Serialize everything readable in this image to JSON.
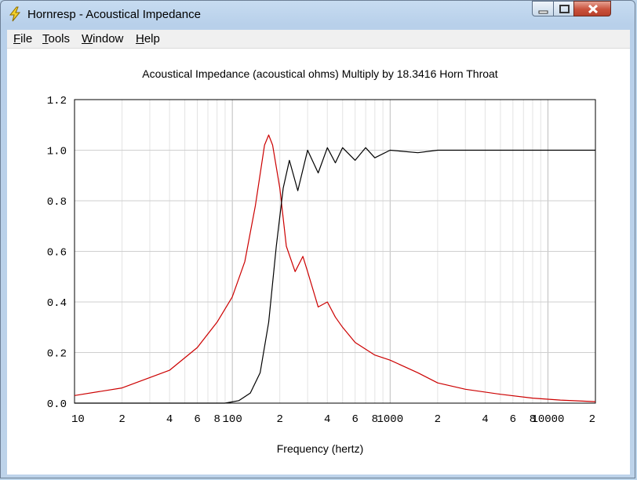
{
  "window": {
    "title": "Hornresp - Acoustical Impedance"
  },
  "menu": {
    "file": "ile",
    "file_u": "F",
    "tools": "ools",
    "tools_u": "T",
    "window": "indow",
    "window_u": "W",
    "help": "elp",
    "help_u": "H"
  },
  "colors": {
    "real_series": "#cc0000",
    "imag_series": "#000000"
  },
  "chart_data": {
    "type": "line",
    "title": "Acoustical Impedance (acoustical ohms)   Multiply by 18.3416   Horn Throat",
    "xlabel": "Frequency (hertz)",
    "ylabel": "",
    "x_scale": "log",
    "xlim": [
      10,
      20000
    ],
    "ylim": [
      0,
      1.2
    ],
    "grid": true,
    "x_tick_labels": [
      "10",
      "2",
      "4",
      "6",
      "8",
      "100",
      "2",
      "4",
      "6",
      "8",
      "1000",
      "2",
      "4",
      "6",
      "8",
      "10000",
      "2"
    ],
    "x_tick_values": [
      10,
      20,
      40,
      60,
      80,
      100,
      200,
      400,
      600,
      800,
      1000,
      2000,
      4000,
      6000,
      8000,
      10000,
      20000
    ],
    "y_tick_labels": [
      "0.0",
      "0.2",
      "0.4",
      "0.6",
      "0.8",
      "1.0",
      "1.2"
    ],
    "y_tick_values": [
      0,
      0.2,
      0.4,
      0.6,
      0.8,
      1.0,
      1.2
    ],
    "series": [
      {
        "color": "#cc0000",
        "x": [
          10,
          20,
          40,
          60,
          80,
          100,
          120,
          140,
          160,
          170,
          180,
          200,
          220,
          250,
          280,
          300,
          350,
          400,
          450,
          500,
          600,
          800,
          1000,
          1500,
          2000,
          3000,
          5000,
          8000,
          12000,
          20000
        ],
        "y": [
          0.03,
          0.06,
          0.13,
          0.22,
          0.32,
          0.42,
          0.56,
          0.78,
          1.02,
          1.06,
          1.02,
          0.85,
          0.62,
          0.52,
          0.58,
          0.52,
          0.38,
          0.4,
          0.34,
          0.3,
          0.24,
          0.19,
          0.17,
          0.12,
          0.08,
          0.055,
          0.035,
          0.02,
          0.012,
          0.006
        ]
      },
      {
        "color": "#000000",
        "x": [
          10,
          90,
          110,
          130,
          150,
          170,
          190,
          210,
          230,
          260,
          300,
          350,
          400,
          450,
          500,
          600,
          700,
          800,
          1000,
          1500,
          2000,
          3000,
          5000,
          10000,
          20000
        ],
        "y": [
          0,
          0,
          0.01,
          0.04,
          0.12,
          0.32,
          0.62,
          0.85,
          0.96,
          0.84,
          1.0,
          0.91,
          1.01,
          0.95,
          1.01,
          0.96,
          1.01,
          0.97,
          1.0,
          0.99,
          1.0,
          1.0,
          1.0,
          1.0,
          1.0
        ]
      }
    ]
  }
}
